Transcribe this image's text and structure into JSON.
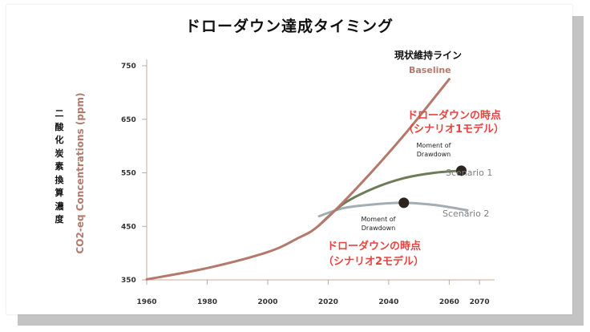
{
  "title": "ドローダウン達成タイミング",
  "vertical_label": "二酸化炭素換算濃度",
  "colors": {
    "baseline": "#b4796c",
    "scenario1": "#6e7b58",
    "scenario2": "#a3adb3",
    "axis": "#c9a79e",
    "highlight": "#e8433e",
    "marker": "#2b241f"
  },
  "annotations": {
    "baseline_jp": "現状維持ライン",
    "s1_jp_line1": "ドローダウンの時点",
    "s1_jp_line2": "（シナリオ1モデル）",
    "s2_jp_line1": "ドローダウンの時点",
    "s2_jp_line2": "（シナリオ2モデル）",
    "moment_line1": "Moment of",
    "moment_line2": "Drawdown"
  },
  "chart_data": {
    "type": "line",
    "ylabel": "CO2-eq Concentrations (ppm)",
    "xlim": [
      1960,
      2075
    ],
    "ylim": [
      350,
      750
    ],
    "xticks": [
      1960,
      1980,
      2000,
      2020,
      2040,
      2060,
      2070
    ],
    "yticks": [
      350,
      450,
      550,
      650,
      750
    ],
    "series": [
      {
        "name": "Baseline",
        "color": "#b4796c",
        "x": [
          1960,
          1980,
          2000,
          2010,
          2017,
          2030,
          2045,
          2060
        ],
        "y": [
          351,
          372,
          402,
          428,
          452,
          525,
          620,
          725
        ]
      },
      {
        "name": "Scenario 1",
        "color": "#6e7b58",
        "x": [
          2017,
          2025,
          2035,
          2045,
          2055,
          2064
        ],
        "y": [
          452,
          492,
          521,
          540,
          550,
          554
        ],
        "marker": {
          "x": 2064,
          "y": 554
        }
      },
      {
        "name": "Scenario 2",
        "color": "#a3adb3",
        "x": [
          2017,
          2025,
          2035,
          2045,
          2055,
          2066
        ],
        "y": [
          469,
          484,
          491,
          494,
          490,
          480
        ],
        "marker": {
          "x": 2045,
          "y": 494
        }
      }
    ]
  }
}
